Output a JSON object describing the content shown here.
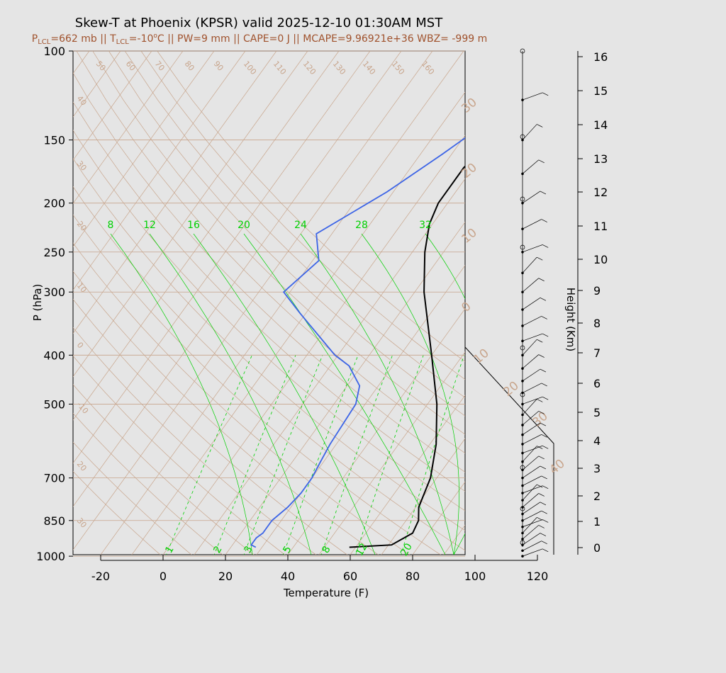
{
  "title": "Skew-T at Phoenix (KPSR) valid 2025-12-10 01:30AM MST",
  "subtitle": {
    "p_lcl_label": "P",
    "p_lcl_sub": "LCL",
    "p_lcl_value": "=662 mb || T",
    "t_lcl_sub": "LCL",
    "t_lcl_value": "=-10",
    "deg_sup": "o",
    "rest": "C || PW=9 mm || CAPE=0 J || MCAPE=9.96921e+36 WBZ= -999 m"
  },
  "colors": {
    "temperature": "#000000",
    "dewpoint": "#3c64e6",
    "background": "#e5e5e5",
    "isotherms": "#c8a58c",
    "mixing_ratio": "#00d000",
    "wind": "#000000"
  },
  "chart_data": {
    "type": "line",
    "chart_kind": "skew-t log-p diagram",
    "xlabel": "Temperature (F)",
    "ylabel": "P (hPa)",
    "y2label": "Height (Km)",
    "xlim": [
      -28,
      96
    ],
    "ylim": [
      1050,
      100
    ],
    "y_scale": "log",
    "x_ticks": [
      "-20",
      "0",
      "20",
      "40",
      "60",
      "80",
      "100",
      "120"
    ],
    "y_ticks": [
      "100",
      "150",
      "200",
      "250",
      "300",
      "400",
      "500",
      "700",
      "850",
      "1000"
    ],
    "height_ticks": [
      "0",
      "1",
      "2",
      "3",
      "4",
      "5",
      "6",
      "7",
      "8",
      "9",
      "10",
      "11",
      "12",
      "13",
      "14",
      "15",
      "16"
    ],
    "skewed_temperature_labels": [
      "30",
      "20",
      "10",
      "0",
      "10",
      "20",
      "30",
      "40"
    ],
    "left_temperature_labels": [
      "40",
      "30",
      "20",
      "10",
      "0",
      "-10",
      "20",
      "30"
    ],
    "theta_labels": [
      "50",
      "60",
      "70",
      "80",
      "90",
      "100",
      "110",
      "120",
      "130",
      "140",
      "150",
      "160"
    ],
    "mixing_ratio_top_labels": [
      "8",
      "12",
      "16",
      "20",
      "24",
      "28",
      "32"
    ],
    "mixing_ratio_bottom_labels": [
      "1",
      "2",
      "3",
      "5",
      "8",
      "12",
      "20"
    ],
    "series": [
      {
        "name": "Temperature",
        "points": [
          [
            960,
            58
          ],
          [
            950,
            71
          ],
          [
            900,
            75
          ],
          [
            850,
            74
          ],
          [
            800,
            71
          ],
          [
            700,
            68
          ],
          [
            600,
            62
          ],
          [
            500,
            53
          ],
          [
            400,
            40
          ],
          [
            300,
            23
          ],
          [
            250,
            14
          ],
          [
            220,
            9
          ],
          [
            200,
            7
          ],
          [
            170,
            7
          ],
          [
            140,
            12
          ],
          [
            100,
            44
          ]
        ]
      },
      {
        "name": "Dewpoint",
        "points": [
          [
            960,
            28
          ],
          [
            950,
            26
          ],
          [
            920,
            26
          ],
          [
            900,
            27
          ],
          [
            870,
            27
          ],
          [
            850,
            27
          ],
          [
            800,
            29
          ],
          [
            750,
            30
          ],
          [
            700,
            30
          ],
          [
            650,
            29
          ],
          [
            600,
            28
          ],
          [
            500,
            27
          ],
          [
            460,
            24
          ],
          [
            420,
            16
          ],
          [
            400,
            9
          ],
          [
            330,
            -12
          ],
          [
            300,
            -22
          ],
          [
            260,
            -18
          ],
          [
            230,
            -25
          ],
          [
            190,
            -12
          ],
          [
            160,
            -3
          ],
          [
            130,
            7
          ],
          [
            100,
            23
          ]
        ]
      }
    ],
    "wind_barb_pressures": [
      1000,
      975,
      950,
      925,
      900,
      875,
      850,
      825,
      800,
      775,
      750,
      725,
      700,
      675,
      650,
      625,
      600,
      575,
      550,
      525,
      500,
      475,
      450,
      425,
      400,
      375,
      350,
      325,
      300,
      275,
      250,
      225,
      200,
      175,
      150,
      125
    ]
  }
}
